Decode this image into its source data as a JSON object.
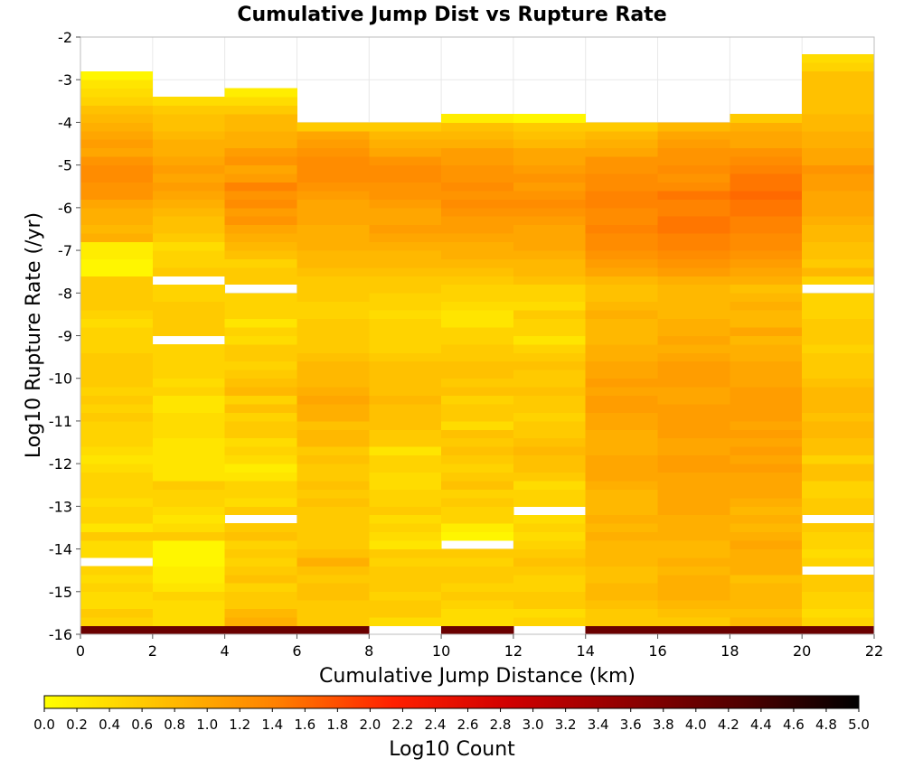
{
  "chart_data": {
    "type": "heatmap",
    "title": "Cumulative Jump Dist vs Rupture Rate",
    "xlabel": "Cumulative Jump Distance (km)",
    "ylabel": "Log10 Rupture Rate (/yr)",
    "colorbar_label": "Log10 Count",
    "xlim": [
      0,
      22
    ],
    "ylim": [
      -16,
      -2
    ],
    "x_ticks": [
      0,
      2,
      4,
      6,
      8,
      10,
      12,
      14,
      16,
      18,
      20,
      22
    ],
    "y_ticks": [
      -2,
      -3,
      -4,
      -5,
      -6,
      -7,
      -8,
      -9,
      -10,
      -11,
      -12,
      -13,
      -14,
      -15,
      -16
    ],
    "x_bin_edges": [
      0,
      2,
      4,
      6,
      8,
      10,
      12,
      14,
      16,
      18,
      20,
      22
    ],
    "y_bin_width": 0.2,
    "y_bin_lower_edge": -16,
    "color_range": [
      0.0,
      5.0
    ],
    "colorbar_ticks": [
      0.0,
      0.2,
      0.4,
      0.6,
      0.8,
      1.0,
      1.2,
      1.4,
      1.6,
      1.8,
      2.0,
      2.2,
      2.4,
      2.6,
      2.8,
      3.0,
      3.2,
      3.4,
      3.6,
      3.8,
      4.0,
      4.2,
      4.4,
      4.6,
      4.8,
      5.0
    ],
    "colorscale": [
      "#ffff00",
      "#ffc000",
      "#ff8000",
      "#ff2000",
      "#d00000",
      "#900000",
      "#500000",
      "#000000"
    ],
    "grid": true,
    "columns": [
      [
        4.0,
        0.5,
        0.6,
        0.4,
        0.4,
        0.5,
        0.4,
        0.5,
        null,
        0.4,
        0.4,
        0.6,
        0.3,
        0.5,
        0.5,
        0.4,
        0.5,
        0.5,
        0.5,
        0.4,
        0.3,
        0.4,
        0.5,
        0.5,
        0.5,
        0.6,
        0.5,
        0.6,
        0.5,
        0.6,
        0.6,
        0.6,
        0.6,
        0.5,
        0.5,
        0.5,
        0.4,
        0.5,
        0.6,
        0.6,
        0.6,
        0.6,
        0.1,
        0.1,
        0.2,
        0.2,
        0.9,
        0.8,
        0.9,
        0.9,
        1.0,
        1.2,
        1.2,
        1.3,
        1.3,
        1.2,
        1.0,
        1.1,
        1.0,
        0.9,
        0.8,
        0.7,
        0.5,
        0.4,
        0.3,
        0.1,
        null,
        null,
        null,
        null
      ],
      [
        4.0,
        0.4,
        0.4,
        0.4,
        0.5,
        0.3,
        0.2,
        0.2,
        0.1,
        0.1,
        0.1,
        0.6,
        0.4,
        0.3,
        0.4,
        0.5,
        0.5,
        0.6,
        0.3,
        0.3,
        0.3,
        0.3,
        0.3,
        0.4,
        0.4,
        0.4,
        0.3,
        0.3,
        0.5,
        0.4,
        0.5,
        0.5,
        0.5,
        0.5,
        null,
        0.6,
        0.6,
        0.6,
        0.6,
        0.5,
        0.5,
        null,
        0.6,
        0.5,
        0.5,
        0.4,
        0.6,
        0.7,
        0.7,
        0.8,
        0.9,
        1.0,
        1.1,
        1.0,
        1.1,
        1.0,
        0.9,
        0.9,
        0.8,
        0.7,
        0.7,
        0.6,
        0.4,
        null,
        null,
        null,
        null,
        null,
        null,
        null
      ],
      [
        4.0,
        0.9,
        0.8,
        0.6,
        0.6,
        0.5,
        0.7,
        0.6,
        0.5,
        0.6,
        0.5,
        0.7,
        0.6,
        null,
        0.6,
        0.4,
        0.5,
        0.5,
        0.3,
        0.2,
        0.4,
        0.5,
        0.4,
        0.6,
        0.6,
        0.5,
        0.7,
        0.5,
        0.8,
        0.7,
        0.6,
        0.5,
        0.6,
        0.6,
        0.4,
        0.5,
        0.3,
        0.5,
        0.5,
        0.5,
        null,
        0.6,
        0.6,
        0.5,
        0.7,
        0.8,
        0.9,
        1.0,
        1.2,
        1.1,
        1.3,
        1.2,
        1.4,
        1.1,
        1.0,
        1.2,
        1.1,
        0.9,
        0.9,
        0.8,
        0.8,
        0.6,
        0.4,
        0.2,
        null,
        null,
        null,
        null,
        null,
        null
      ],
      [
        4.0,
        0.6,
        0.6,
        0.6,
        0.7,
        0.7,
        0.6,
        0.7,
        0.9,
        0.7,
        0.6,
        0.6,
        0.6,
        0.6,
        0.6,
        0.7,
        0.6,
        0.7,
        0.6,
        0.6,
        0.7,
        0.6,
        0.8,
        0.8,
        0.7,
        0.9,
        0.9,
        1.0,
        0.9,
        0.8,
        0.8,
        0.8,
        0.7,
        0.6,
        0.6,
        0.6,
        0.6,
        0.5,
        0.5,
        0.6,
        0.6,
        0.6,
        0.7,
        0.8,
        0.8,
        0.9,
        0.9,
        0.9,
        1.0,
        1.0,
        1.0,
        1.1,
        1.2,
        1.3,
        1.3,
        1.3,
        1.2,
        1.1,
        1.0,
        0.6,
        null,
        null,
        null,
        null,
        null,
        null,
        null,
        null,
        null,
        null
      ],
      [
        null,
        0.4,
        0.6,
        0.6,
        0.5,
        0.6,
        0.6,
        0.6,
        0.5,
        0.6,
        0.3,
        0.4,
        0.5,
        0.4,
        0.6,
        0.5,
        0.5,
        0.4,
        0.4,
        0.5,
        0.5,
        0.3,
        0.6,
        0.6,
        0.7,
        0.7,
        0.7,
        0.8,
        0.7,
        0.7,
        0.7,
        0.7,
        0.6,
        0.5,
        0.5,
        0.5,
        0.5,
        0.4,
        0.5,
        0.5,
        0.6,
        0.6,
        0.7,
        0.8,
        0.8,
        0.9,
        1.0,
        1.1,
        1.0,
        1.0,
        1.1,
        1.2,
        1.2,
        1.3,
        1.3,
        1.2,
        1.0,
        0.9,
        0.8,
        0.6,
        null,
        null,
        null,
        null,
        null,
        null,
        null,
        null,
        null,
        null
      ],
      [
        4.0,
        0.4,
        0.4,
        0.5,
        0.6,
        0.5,
        0.6,
        0.6,
        0.5,
        0.6,
        null,
        0.1,
        0.2,
        0.5,
        0.5,
        0.6,
        0.5,
        0.7,
        0.6,
        0.5,
        0.6,
        0.7,
        0.6,
        0.7,
        0.4,
        0.6,
        0.6,
        0.5,
        0.7,
        0.6,
        0.7,
        0.7,
        0.6,
        0.6,
        0.5,
        0.5,
        0.3,
        0.3,
        0.4,
        0.5,
        0.5,
        0.6,
        0.7,
        0.8,
        0.9,
        0.9,
        1.0,
        1.1,
        1.1,
        1.2,
        1.3,
        1.2,
        1.3,
        1.2,
        1.2,
        1.1,
        1.1,
        0.9,
        0.8,
        0.7,
        0.2,
        null,
        null,
        null,
        null,
        null,
        null,
        null,
        null,
        null
      ],
      [
        null,
        0.5,
        0.4,
        0.6,
        0.6,
        0.5,
        0.5,
        0.6,
        0.7,
        0.6,
        0.5,
        0.4,
        0.5,
        0.4,
        null,
        0.5,
        0.5,
        0.4,
        0.6,
        0.7,
        0.7,
        0.8,
        0.7,
        0.6,
        0.6,
        0.5,
        0.6,
        0.6,
        0.7,
        0.6,
        0.6,
        0.7,
        0.6,
        0.5,
        0.3,
        0.5,
        0.5,
        0.6,
        0.4,
        0.5,
        0.5,
        0.7,
        0.8,
        0.8,
        0.9,
        1.0,
        1.0,
        1.0,
        1.1,
        1.2,
        1.3,
        1.2,
        1.1,
        1.2,
        1.1,
        1.0,
        1.0,
        0.8,
        0.7,
        0.6,
        0.1,
        null,
        null,
        null,
        null,
        null,
        null,
        null,
        null,
        null
      ],
      [
        4.0,
        0.6,
        0.6,
        0.7,
        0.8,
        0.8,
        0.7,
        0.7,
        0.8,
        0.8,
        0.8,
        0.9,
        0.8,
        0.9,
        0.8,
        0.8,
        0.8,
        0.9,
        1.0,
        1.0,
        1.0,
        0.9,
        0.9,
        0.9,
        1.0,
        1.0,
        1.1,
        1.1,
        1.0,
        1.1,
        1.0,
        1.0,
        0.9,
        0.9,
        0.8,
        0.8,
        0.8,
        0.9,
        0.8,
        0.7,
        0.7,
        0.8,
        1.0,
        1.1,
        1.2,
        1.3,
        1.3,
        1.4,
        1.3,
        1.3,
        1.4,
        1.4,
        1.3,
        1.3,
        1.2,
        1.2,
        1.0,
        0.9,
        0.8,
        0.6,
        null,
        null,
        null,
        null,
        null,
        null,
        null,
        null,
        null,
        null
      ],
      [
        4.0,
        0.6,
        0.7,
        0.8,
        0.9,
        0.9,
        0.9,
        0.8,
        0.9,
        0.8,
        0.8,
        0.9,
        0.9,
        0.9,
        1.0,
        1.0,
        1.0,
        1.0,
        1.0,
        1.1,
        1.1,
        1.0,
        1.0,
        1.1,
        1.1,
        1.1,
        1.1,
        1.0,
        1.0,
        1.1,
        1.1,
        1.1,
        1.0,
        0.9,
        1.0,
        0.9,
        0.9,
        0.8,
        0.8,
        0.8,
        0.8,
        0.9,
        1.1,
        1.2,
        1.3,
        1.4,
        1.4,
        1.5,
        1.5,
        1.4,
        1.4,
        1.5,
        1.3,
        1.2,
        1.3,
        1.2,
        1.2,
        1.1,
        1.0,
        0.8,
        null,
        null,
        null,
        null,
        null,
        null,
        null,
        null,
        null,
        null
      ],
      [
        4.0,
        0.8,
        0.7,
        0.8,
        0.8,
        0.8,
        0.7,
        0.9,
        0.9,
        0.9,
        1.0,
        0.9,
        0.8,
        0.9,
        0.8,
        0.9,
        1.0,
        1.0,
        1.0,
        1.1,
        1.0,
        1.1,
        1.0,
        1.1,
        1.0,
        1.1,
        1.1,
        1.1,
        1.1,
        1.0,
        1.0,
        1.0,
        0.9,
        0.9,
        0.8,
        1.0,
        0.8,
        0.8,
        0.9,
        0.8,
        0.7,
        0.9,
        1.0,
        1.1,
        1.2,
        1.3,
        1.3,
        1.4,
        1.4,
        1.5,
        1.5,
        1.6,
        1.5,
        1.5,
        1.4,
        1.3,
        1.2,
        1.0,
        1.0,
        0.9,
        0.6,
        null,
        null,
        null,
        null,
        null,
        null,
        null,
        null,
        null
      ],
      [
        4.0,
        0.5,
        0.4,
        0.5,
        0.5,
        0.6,
        0.6,
        null,
        0.5,
        0.4,
        0.5,
        0.5,
        0.6,
        null,
        0.6,
        0.6,
        0.5,
        0.5,
        0.7,
        0.7,
        0.5,
        0.7,
        0.7,
        0.8,
        0.8,
        0.7,
        0.8,
        0.8,
        0.8,
        0.7,
        0.6,
        0.6,
        0.6,
        0.5,
        0.6,
        0.6,
        0.6,
        0.5,
        0.5,
        0.5,
        null,
        0.5,
        0.8,
        0.6,
        0.7,
        0.7,
        0.8,
        0.8,
        0.9,
        1.0,
        1.0,
        1.0,
        1.1,
        1.1,
        1.2,
        1.0,
        1.0,
        0.9,
        0.9,
        0.8,
        0.8,
        0.7,
        0.7,
        0.7,
        0.7,
        0.7,
        0.5,
        0.4,
        null,
        null
      ]
    ]
  }
}
